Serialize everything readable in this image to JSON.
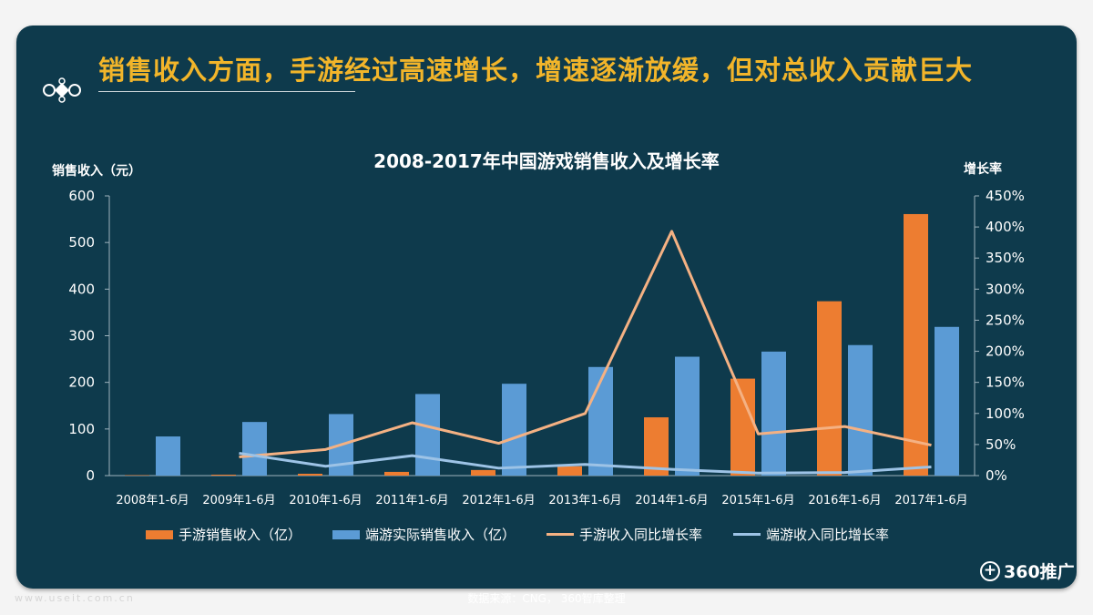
{
  "headline": "销售收入方面，手游经过高速增长，增速逐渐放缓，但对总收入贡献巨大",
  "chart_data": {
    "type": "bar",
    "title": "2008-2017年中国游戏销售收入及增长率",
    "ylabel": "销售收入（元）",
    "y2label": "增长率",
    "ylim": [
      0,
      600
    ],
    "y2lim": [
      0,
      4.5
    ],
    "yticks": [
      "0",
      "100",
      "200",
      "300",
      "400",
      "500",
      "600"
    ],
    "y2ticks": [
      "0%",
      "50%",
      "100%",
      "150%",
      "200%",
      "250%",
      "300%",
      "350%",
      "400%",
      "450%"
    ],
    "categories": [
      "2008年1-6月",
      "2009年1-6月",
      "2010年1-6月",
      "2011年1-6月",
      "2012年1-6月",
      "2013年1-6月",
      "2014年1-6月",
      "2015年1-6月",
      "2016年1-6月",
      "2017年1-6月"
    ],
    "series": [
      {
        "name": "手游销售收入（亿）",
        "type": "bar",
        "axis": "left",
        "color": "#ed7d31",
        "values": [
          1,
          2,
          4,
          8,
          12,
          20,
          125,
          208,
          374,
          561
        ]
      },
      {
        "name": "端游实际销售收入（亿）",
        "type": "bar",
        "axis": "left",
        "color": "#5b9bd5",
        "values": [
          84,
          115,
          132,
          175,
          197,
          233,
          255,
          266,
          280,
          319
        ]
      },
      {
        "name": "手游收入同比增长率",
        "type": "line",
        "axis": "right",
        "color": "#f4b183",
        "values": [
          null,
          0.3,
          0.42,
          0.85,
          0.52,
          1.0,
          3.93,
          0.67,
          0.79,
          0.49
        ]
      },
      {
        "name": "端游收入同比增长率",
        "type": "line",
        "axis": "right",
        "color": "#9dc3e6",
        "values": [
          null,
          0.36,
          0.15,
          0.32,
          0.12,
          0.18,
          0.1,
          0.04,
          0.05,
          0.14
        ]
      }
    ],
    "legend": "bottom",
    "grid": false
  },
  "source": "数据来源：CNG， 360智库整理",
  "logo": "360推广",
  "watermark": "www.useit.com.cn"
}
